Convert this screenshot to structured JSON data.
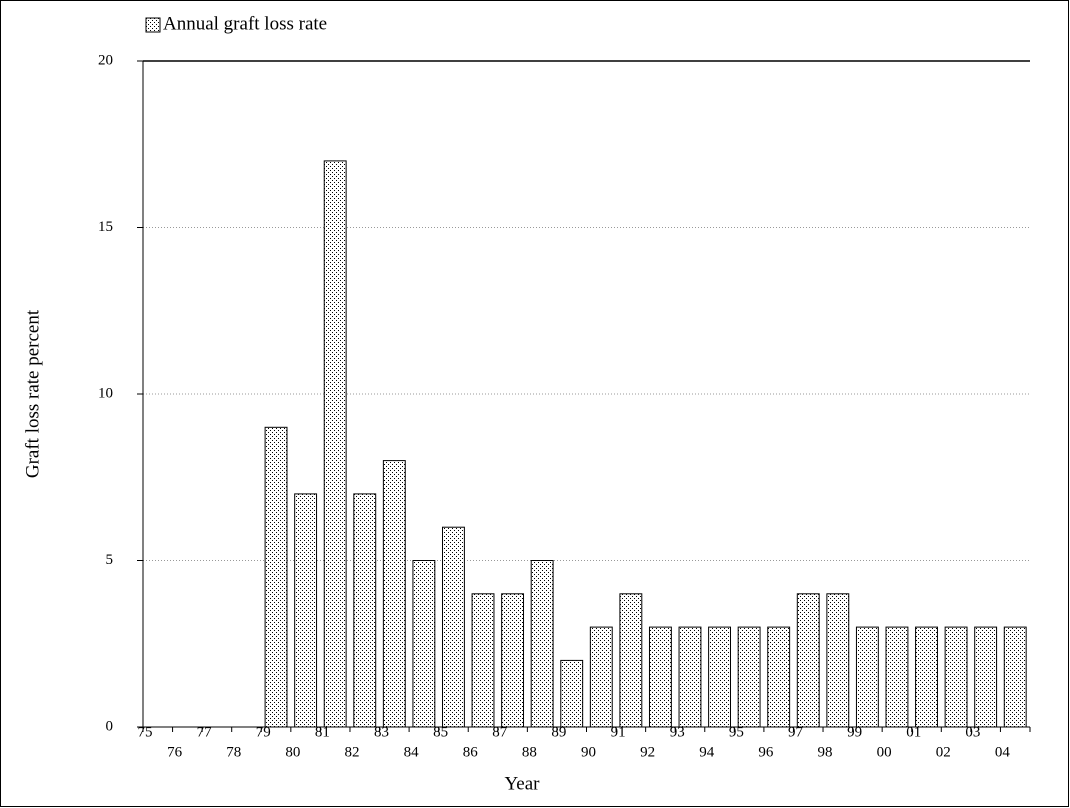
{
  "chart_data": {
    "type": "bar",
    "categories": [
      "75",
      "76",
      "77",
      "78",
      "79",
      "80",
      "81",
      "82",
      "83",
      "84",
      "85",
      "86",
      "87",
      "88",
      "89",
      "90",
      "91",
      "92",
      "93",
      "94",
      "95",
      "96",
      "97",
      "98",
      "99",
      "00",
      "01",
      "02",
      "03",
      "04"
    ],
    "series": [
      {
        "name": "Annual graft loss rate",
        "color": "#ffffff",
        "values": [
          0,
          0,
          0,
          0,
          9,
          7,
          17,
          7,
          8,
          5,
          6,
          4,
          4,
          5,
          2,
          3,
          4,
          3,
          3,
          3,
          3,
          3,
          4,
          4,
          3,
          3,
          3,
          3,
          3,
          3
        ]
      }
    ],
    "ylim": [
      0,
      20
    ],
    "yticks": [
      0,
      5,
      10,
      15,
      20
    ],
    "y_label": "Graft loss rate percent",
    "x_label": "Year",
    "grid": true,
    "legend": "top-left"
  }
}
